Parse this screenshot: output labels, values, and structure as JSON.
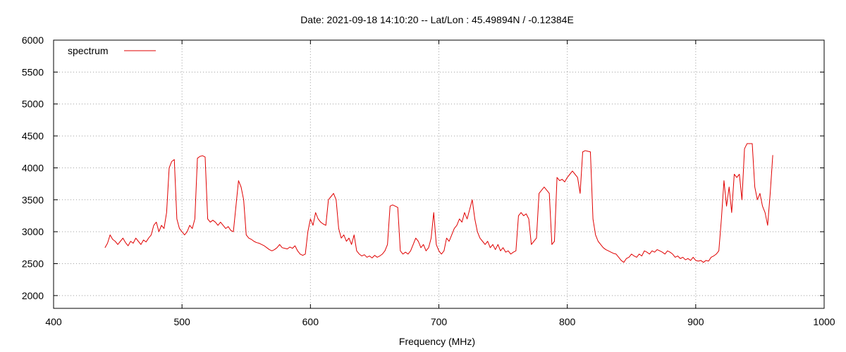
{
  "chart_data": {
    "type": "line",
    "title": "Date: 2021-09-18 14:10:20  --  Lat/Lon : 45.49894N / -0.12384E",
    "xlabel": "Frequency (MHz)",
    "ylabel": "",
    "xlim": [
      400,
      1000
    ],
    "ylim": [
      1800,
      6000
    ],
    "x_ticks": [
      400,
      500,
      600,
      700,
      800,
      900,
      1000
    ],
    "y_ticks": [
      2000,
      2500,
      3000,
      3500,
      4000,
      4500,
      5000,
      5500,
      6000
    ],
    "grid": true,
    "legend": "top-left",
    "series": [
      {
        "name": "spectrum",
        "color": "#e00000",
        "points": [
          [
            440,
            2750
          ],
          [
            442,
            2820
          ],
          [
            444,
            2950
          ],
          [
            446,
            2880
          ],
          [
            448,
            2850
          ],
          [
            450,
            2800
          ],
          [
            452,
            2850
          ],
          [
            454,
            2900
          ],
          [
            456,
            2830
          ],
          [
            458,
            2780
          ],
          [
            460,
            2850
          ],
          [
            462,
            2820
          ],
          [
            464,
            2900
          ],
          [
            466,
            2850
          ],
          [
            468,
            2800
          ],
          [
            470,
            2870
          ],
          [
            472,
            2840
          ],
          [
            474,
            2900
          ],
          [
            476,
            2950
          ],
          [
            478,
            3100
          ],
          [
            480,
            3150
          ],
          [
            482,
            3000
          ],
          [
            484,
            3100
          ],
          [
            486,
            3050
          ],
          [
            488,
            3300
          ],
          [
            490,
            4000
          ],
          [
            492,
            4100
          ],
          [
            494,
            4130
          ],
          [
            496,
            3200
          ],
          [
            498,
            3050
          ],
          [
            500,
            3000
          ],
          [
            502,
            2950
          ],
          [
            504,
            3000
          ],
          [
            506,
            3100
          ],
          [
            508,
            3050
          ],
          [
            510,
            3200
          ],
          [
            512,
            4150
          ],
          [
            514,
            4180
          ],
          [
            516,
            4190
          ],
          [
            518,
            4170
          ],
          [
            520,
            3200
          ],
          [
            522,
            3150
          ],
          [
            524,
            3180
          ],
          [
            526,
            3150
          ],
          [
            528,
            3100
          ],
          [
            530,
            3150
          ],
          [
            532,
            3100
          ],
          [
            534,
            3050
          ],
          [
            536,
            3080
          ],
          [
            538,
            3020
          ],
          [
            540,
            3000
          ],
          [
            542,
            3400
          ],
          [
            544,
            3800
          ],
          [
            546,
            3700
          ],
          [
            548,
            3500
          ],
          [
            550,
            2950
          ],
          [
            552,
            2900
          ],
          [
            554,
            2880
          ],
          [
            556,
            2850
          ],
          [
            558,
            2830
          ],
          [
            560,
            2820
          ],
          [
            562,
            2800
          ],
          [
            564,
            2780
          ],
          [
            566,
            2750
          ],
          [
            568,
            2720
          ],
          [
            570,
            2700
          ],
          [
            572,
            2720
          ],
          [
            574,
            2750
          ],
          [
            576,
            2800
          ],
          [
            578,
            2750
          ],
          [
            580,
            2740
          ],
          [
            582,
            2730
          ],
          [
            584,
            2760
          ],
          [
            586,
            2740
          ],
          [
            588,
            2780
          ],
          [
            590,
            2700
          ],
          [
            592,
            2650
          ],
          [
            594,
            2630
          ],
          [
            596,
            2650
          ],
          [
            598,
            3000
          ],
          [
            600,
            3200
          ],
          [
            602,
            3100
          ],
          [
            604,
            3300
          ],
          [
            606,
            3200
          ],
          [
            608,
            3150
          ],
          [
            610,
            3120
          ],
          [
            612,
            3100
          ],
          [
            614,
            3500
          ],
          [
            616,
            3550
          ],
          [
            618,
            3600
          ],
          [
            620,
            3500
          ],
          [
            622,
            3050
          ],
          [
            624,
            2900
          ],
          [
            626,
            2950
          ],
          [
            628,
            2850
          ],
          [
            630,
            2900
          ],
          [
            632,
            2800
          ],
          [
            634,
            2950
          ],
          [
            636,
            2700
          ],
          [
            638,
            2650
          ],
          [
            640,
            2620
          ],
          [
            642,
            2640
          ],
          [
            644,
            2600
          ],
          [
            646,
            2620
          ],
          [
            648,
            2590
          ],
          [
            650,
            2630
          ],
          [
            652,
            2600
          ],
          [
            654,
            2620
          ],
          [
            656,
            2650
          ],
          [
            658,
            2700
          ],
          [
            660,
            2800
          ],
          [
            662,
            3400
          ],
          [
            664,
            3420
          ],
          [
            666,
            3400
          ],
          [
            668,
            3380
          ],
          [
            670,
            2700
          ],
          [
            672,
            2650
          ],
          [
            674,
            2680
          ],
          [
            676,
            2650
          ],
          [
            678,
            2700
          ],
          [
            680,
            2800
          ],
          [
            682,
            2900
          ],
          [
            684,
            2850
          ],
          [
            686,
            2750
          ],
          [
            688,
            2800
          ],
          [
            690,
            2700
          ],
          [
            692,
            2750
          ],
          [
            694,
            2900
          ],
          [
            696,
            3300
          ],
          [
            698,
            2800
          ],
          [
            700,
            2700
          ],
          [
            702,
            2650
          ],
          [
            704,
            2700
          ],
          [
            706,
            2900
          ],
          [
            708,
            2850
          ],
          [
            710,
            2950
          ],
          [
            712,
            3050
          ],
          [
            714,
            3100
          ],
          [
            716,
            3200
          ],
          [
            718,
            3150
          ],
          [
            720,
            3300
          ],
          [
            722,
            3200
          ],
          [
            724,
            3350
          ],
          [
            726,
            3500
          ],
          [
            728,
            3200
          ],
          [
            730,
            3000
          ],
          [
            732,
            2900
          ],
          [
            734,
            2850
          ],
          [
            736,
            2800
          ],
          [
            738,
            2850
          ],
          [
            740,
            2750
          ],
          [
            742,
            2800
          ],
          [
            744,
            2720
          ],
          [
            746,
            2800
          ],
          [
            748,
            2700
          ],
          [
            750,
            2750
          ],
          [
            752,
            2680
          ],
          [
            754,
            2700
          ],
          [
            756,
            2650
          ],
          [
            758,
            2680
          ],
          [
            760,
            2700
          ],
          [
            762,
            3250
          ],
          [
            764,
            3300
          ],
          [
            766,
            3250
          ],
          [
            768,
            3280
          ],
          [
            770,
            3200
          ],
          [
            772,
            2800
          ],
          [
            774,
            2850
          ],
          [
            776,
            2900
          ],
          [
            778,
            3600
          ],
          [
            780,
            3650
          ],
          [
            782,
            3700
          ],
          [
            784,
            3650
          ],
          [
            786,
            3600
          ],
          [
            788,
            2800
          ],
          [
            790,
            2850
          ],
          [
            792,
            3850
          ],
          [
            794,
            3800
          ],
          [
            796,
            3820
          ],
          [
            798,
            3780
          ],
          [
            800,
            3850
          ],
          [
            802,
            3900
          ],
          [
            804,
            3950
          ],
          [
            806,
            3900
          ],
          [
            808,
            3850
          ],
          [
            810,
            3600
          ],
          [
            812,
            4250
          ],
          [
            814,
            4270
          ],
          [
            816,
            4260
          ],
          [
            818,
            4250
          ],
          [
            820,
            3200
          ],
          [
            822,
            2950
          ],
          [
            824,
            2850
          ],
          [
            826,
            2800
          ],
          [
            828,
            2750
          ],
          [
            830,
            2720
          ],
          [
            832,
            2700
          ],
          [
            834,
            2680
          ],
          [
            836,
            2660
          ],
          [
            838,
            2650
          ],
          [
            840,
            2600
          ],
          [
            842,
            2550
          ],
          [
            844,
            2520
          ],
          [
            846,
            2580
          ],
          [
            848,
            2600
          ],
          [
            850,
            2650
          ],
          [
            852,
            2620
          ],
          [
            854,
            2600
          ],
          [
            856,
            2650
          ],
          [
            858,
            2620
          ],
          [
            860,
            2700
          ],
          [
            862,
            2680
          ],
          [
            864,
            2650
          ],
          [
            866,
            2700
          ],
          [
            868,
            2680
          ],
          [
            870,
            2720
          ],
          [
            872,
            2700
          ],
          [
            874,
            2680
          ],
          [
            876,
            2650
          ],
          [
            878,
            2700
          ],
          [
            880,
            2680
          ],
          [
            882,
            2650
          ],
          [
            884,
            2600
          ],
          [
            886,
            2620
          ],
          [
            888,
            2580
          ],
          [
            890,
            2600
          ],
          [
            892,
            2560
          ],
          [
            894,
            2580
          ],
          [
            896,
            2550
          ],
          [
            898,
            2600
          ],
          [
            900,
            2550
          ],
          [
            902,
            2540
          ],
          [
            904,
            2550
          ],
          [
            906,
            2520
          ],
          [
            908,
            2550
          ],
          [
            910,
            2540
          ],
          [
            912,
            2600
          ],
          [
            914,
            2620
          ],
          [
            916,
            2650
          ],
          [
            918,
            2700
          ],
          [
            920,
            3200
          ],
          [
            922,
            3800
          ],
          [
            924,
            3400
          ],
          [
            926,
            3700
          ],
          [
            928,
            3300
          ],
          [
            930,
            3900
          ],
          [
            932,
            3850
          ],
          [
            934,
            3900
          ],
          [
            936,
            3500
          ],
          [
            938,
            4300
          ],
          [
            940,
            4380
          ],
          [
            942,
            4380
          ],
          [
            944,
            4380
          ],
          [
            946,
            3700
          ],
          [
            948,
            3500
          ],
          [
            950,
            3600
          ],
          [
            952,
            3400
          ],
          [
            954,
            3300
          ],
          [
            956,
            3100
          ],
          [
            958,
            3600
          ],
          [
            960,
            4200
          ]
        ]
      }
    ]
  }
}
